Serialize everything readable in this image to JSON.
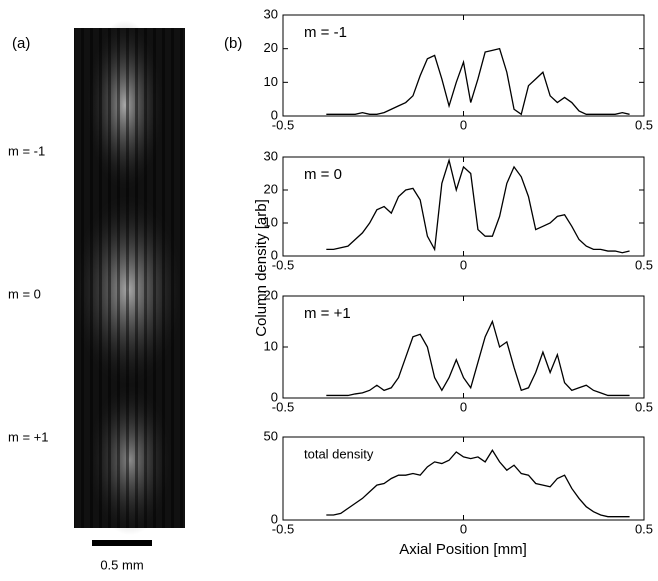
{
  "image_panel": {
    "label": "(a)",
    "states": [
      "m = -1",
      "m = 0",
      "m = +1"
    ],
    "scale_bar": "0.5 mm"
  },
  "figure": {
    "panel_label": "(b)",
    "ylabel": "Column density [arb]",
    "xlabel": "Axial Position [mm]"
  },
  "chart_data": [
    {
      "type": "line",
      "label": "m = -1",
      "color": "#000000",
      "xlim": [
        -0.5,
        0.5
      ],
      "xticks": [
        -0.5,
        0,
        0.5
      ],
      "ylim": [
        0,
        30
      ],
      "yticks": [
        0,
        10,
        20,
        30
      ],
      "x": [
        -0.38,
        -0.36,
        -0.34,
        -0.32,
        -0.3,
        -0.28,
        -0.26,
        -0.24,
        -0.22,
        -0.2,
        -0.18,
        -0.16,
        -0.14,
        -0.12,
        -0.1,
        -0.08,
        -0.06,
        -0.04,
        -0.02,
        0.0,
        0.02,
        0.04,
        0.06,
        0.08,
        0.1,
        0.12,
        0.14,
        0.16,
        0.18,
        0.2,
        0.22,
        0.24,
        0.26,
        0.28,
        0.3,
        0.32,
        0.34,
        0.36,
        0.38,
        0.4,
        0.42,
        0.44,
        0.46
      ],
      "values": [
        0.5,
        0.5,
        0.5,
        0.5,
        0.5,
        1,
        0.5,
        0.5,
        1,
        2,
        3,
        4,
        6,
        12,
        17,
        18,
        11,
        3,
        10,
        16,
        4,
        11,
        19,
        19.5,
        20,
        13,
        2,
        0.5,
        9,
        11,
        13,
        6,
        4,
        5.5,
        4,
        1.5,
        0.5,
        0.5,
        0.5,
        0.5,
        0.5,
        1,
        0.5
      ]
    },
    {
      "type": "line",
      "label": "m = 0",
      "color": "#000000",
      "xlim": [
        -0.5,
        0.5
      ],
      "xticks": [
        -0.5,
        0,
        0.5
      ],
      "ylim": [
        0,
        30
      ],
      "yticks": [
        0,
        10,
        20,
        30
      ],
      "x": [
        -0.38,
        -0.36,
        -0.34,
        -0.32,
        -0.3,
        -0.28,
        -0.26,
        -0.24,
        -0.22,
        -0.2,
        -0.18,
        -0.16,
        -0.14,
        -0.12,
        -0.1,
        -0.08,
        -0.06,
        -0.04,
        -0.02,
        0.0,
        0.02,
        0.04,
        0.06,
        0.08,
        0.1,
        0.12,
        0.14,
        0.16,
        0.18,
        0.2,
        0.22,
        0.24,
        0.26,
        0.28,
        0.3,
        0.32,
        0.34,
        0.36,
        0.38,
        0.4,
        0.42,
        0.44,
        0.46
      ],
      "values": [
        2,
        2,
        2.5,
        3,
        5,
        7,
        10,
        14,
        15,
        13,
        18,
        20,
        20.5,
        17,
        6,
        2,
        22,
        29,
        20,
        27,
        25,
        8,
        6,
        6,
        12,
        22,
        27,
        24,
        18,
        8,
        9,
        10,
        12,
        12.5,
        9,
        5,
        3,
        2,
        2,
        1.5,
        1.5,
        1,
        1.5
      ]
    },
    {
      "type": "line",
      "label": "m = +1",
      "color": "#000000",
      "xlim": [
        -0.5,
        0.5
      ],
      "xticks": [
        -0.5,
        0,
        0.5
      ],
      "ylim": [
        0,
        20
      ],
      "yticks": [
        0,
        10,
        20
      ],
      "x": [
        -0.38,
        -0.36,
        -0.34,
        -0.32,
        -0.3,
        -0.28,
        -0.26,
        -0.24,
        -0.22,
        -0.2,
        -0.18,
        -0.16,
        -0.14,
        -0.12,
        -0.1,
        -0.08,
        -0.06,
        -0.04,
        -0.02,
        0.0,
        0.02,
        0.04,
        0.06,
        0.08,
        0.1,
        0.12,
        0.14,
        0.16,
        0.18,
        0.2,
        0.22,
        0.24,
        0.26,
        0.28,
        0.3,
        0.32,
        0.34,
        0.36,
        0.38,
        0.4,
        0.42,
        0.44,
        0.46
      ],
      "values": [
        0.5,
        0.5,
        0.5,
        0.5,
        0.8,
        1,
        1.5,
        2.5,
        1.5,
        2,
        4,
        8,
        12,
        12.5,
        10,
        4,
        1.5,
        4,
        7.5,
        4,
        2,
        7,
        12,
        15,
        10,
        11,
        6,
        1.5,
        2,
        5,
        9,
        5,
        8.5,
        3,
        1.5,
        2,
        2.5,
        1.5,
        1,
        0.5,
        0.5,
        0.5,
        0.5
      ]
    },
    {
      "type": "line",
      "label": "total density",
      "color": "#000000",
      "xlim": [
        -0.5,
        0.5
      ],
      "xticks": [
        -0.5,
        0,
        0.5
      ],
      "ylim": [
        0,
        50
      ],
      "yticks": [
        0,
        50
      ],
      "x": [
        -0.38,
        -0.36,
        -0.34,
        -0.32,
        -0.3,
        -0.28,
        -0.26,
        -0.24,
        -0.22,
        -0.2,
        -0.18,
        -0.16,
        -0.14,
        -0.12,
        -0.1,
        -0.08,
        -0.06,
        -0.04,
        -0.02,
        0.0,
        0.02,
        0.04,
        0.06,
        0.08,
        0.1,
        0.12,
        0.14,
        0.16,
        0.18,
        0.2,
        0.22,
        0.24,
        0.26,
        0.28,
        0.3,
        0.32,
        0.34,
        0.36,
        0.38,
        0.4,
        0.42,
        0.44,
        0.46
      ],
      "values": [
        3,
        3,
        4,
        7,
        10,
        13,
        17,
        21,
        22,
        25,
        27,
        27,
        28,
        27,
        32,
        35,
        34,
        36,
        41,
        38,
        37,
        38,
        35,
        42,
        35,
        30,
        33,
        28,
        27,
        22,
        21,
        20,
        25,
        27,
        19,
        13,
        8,
        5,
        3,
        2,
        2,
        2,
        2
      ]
    }
  ]
}
